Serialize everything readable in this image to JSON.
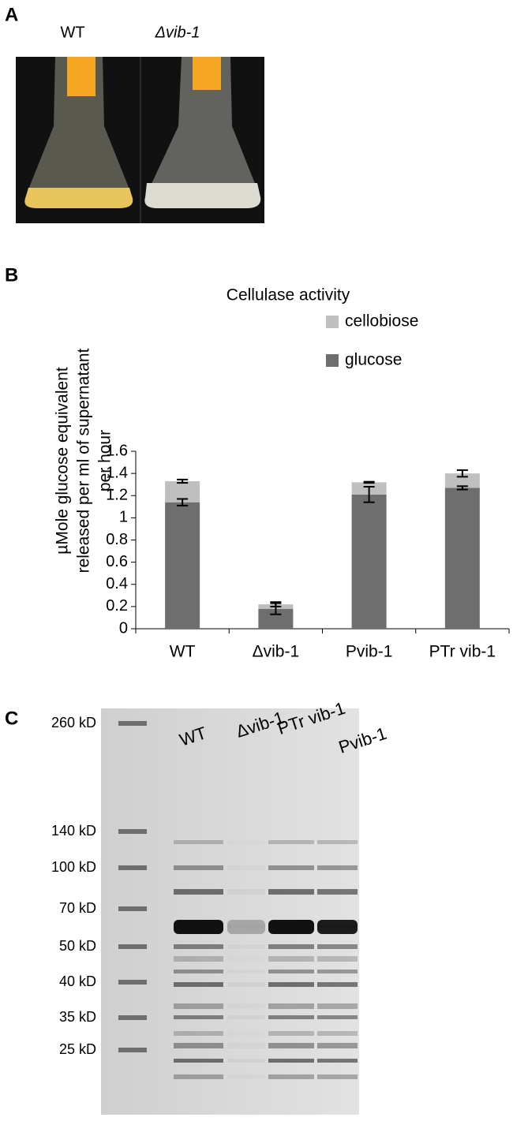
{
  "panel_a": {
    "letter": "A",
    "labels": [
      "WT",
      "Δvib-1"
    ]
  },
  "panel_b": {
    "letter": "B"
  },
  "chart_data": {
    "type": "bar",
    "stacked": true,
    "title": "Cellulase activity",
    "y_label": [
      "µMole glucose equivalent",
      "released per ml of supernatant",
      "per hour"
    ],
    "categories": [
      "WT",
      "Δvib-1",
      "Pvib-1",
      "PTr vib-1"
    ],
    "series": [
      {
        "name": "glucose",
        "color": "#6e6e6e",
        "values": [
          1.14,
          0.18,
          1.21,
          1.27
        ],
        "errors": [
          0.03,
          0.05,
          0.07,
          0.015
        ]
      },
      {
        "name": "cellobiose",
        "color": "#bfbfbf",
        "values": [
          0.19,
          0.04,
          0.11,
          0.13
        ],
        "errors": [
          0.015,
          0.02,
          0.005,
          0.03
        ]
      }
    ],
    "ylim": [
      0,
      1.6
    ],
    "yticks": [
      0,
      0.2,
      0.4,
      0.6,
      0.8,
      1,
      1.2,
      1.4,
      1.6
    ],
    "grid": false
  },
  "panel_c": {
    "letter": "C",
    "lanes": [
      "WT",
      "Δvib-1",
      "PTr vib-1",
      "Pvib-1"
    ],
    "markers": [
      "260 kD",
      "140 kD",
      "100 kD",
      "70 kD",
      "50 kD",
      "40 kD",
      "35 kD",
      "25 kD"
    ]
  }
}
